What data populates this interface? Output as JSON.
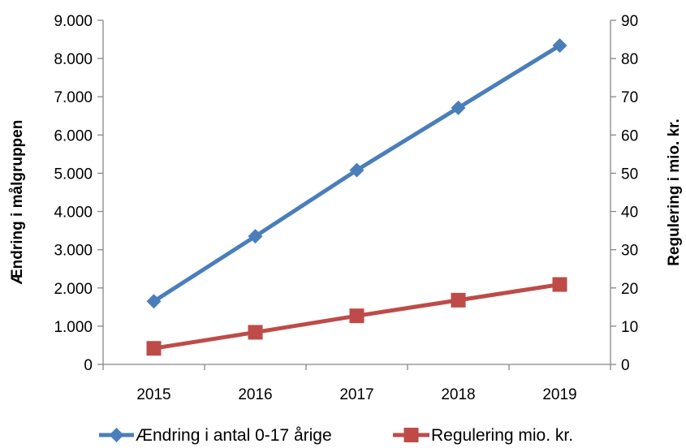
{
  "chart_data": {
    "type": "line",
    "title": "",
    "categories": [
      "2015",
      "2016",
      "2017",
      "2018",
      "2019"
    ],
    "y_left": {
      "label": "Ændring i målgruppen",
      "ylim": [
        0,
        9000
      ],
      "ticks": [
        0,
        1000,
        2000,
        3000,
        4000,
        5000,
        6000,
        7000,
        8000,
        9000
      ],
      "tick_labels": [
        "0",
        "1.000",
        "2.000",
        "3.000",
        "4.000",
        "5.000",
        "6.000",
        "7.000",
        "8.000",
        "9.000"
      ]
    },
    "y_right": {
      "label": "Regulering i mio. kr.",
      "ylim": [
        0,
        90
      ],
      "ticks": [
        0,
        10,
        20,
        30,
        40,
        50,
        60,
        70,
        80,
        90
      ],
      "tick_labels": [
        "0",
        "10",
        "20",
        "30",
        "40",
        "50",
        "60",
        "70",
        "80",
        "90"
      ]
    },
    "series": [
      {
        "name": "Ændring i antal 0-17 årige",
        "axis": "left",
        "marker": "diamond",
        "color": "#4a7ebb",
        "values": [
          1650,
          3350,
          5080,
          6710,
          8340
        ]
      },
      {
        "name": "Regulering mio. kr.",
        "axis": "right",
        "marker": "square",
        "color": "#be4b48",
        "values": [
          4.2,
          8.4,
          12.7,
          16.8,
          20.9
        ]
      }
    ],
    "grid": false,
    "legend_position": "bottom"
  }
}
